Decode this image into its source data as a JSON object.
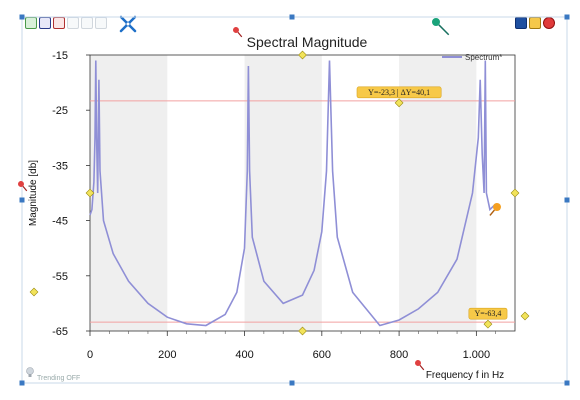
{
  "toolbar": {
    "left_buttons": [
      "save-chart",
      "zoom-fit",
      "scale-toggle",
      "linear",
      "vertical",
      "marker"
    ],
    "right_buttons": [
      "save",
      "open",
      "close"
    ],
    "accent": "#1e6fc8"
  },
  "status": {
    "trending": "Trending OFF"
  },
  "chart_data": {
    "type": "line",
    "title": "Spectral Magnitude",
    "xlabel": "Frequency f in Hz",
    "ylabel": "Magnitude [db]",
    "xlim": [
      0,
      1100
    ],
    "ylim": [
      -65,
      -15
    ],
    "x_ticks": [
      0,
      200,
      400,
      600,
      800,
      1000
    ],
    "x_tick_labels": [
      "0",
      "200",
      "400",
      "600",
      "800",
      "1.000"
    ],
    "y_ticks": [
      -15,
      -25,
      -35,
      -45,
      -55,
      -65
    ],
    "y_tick_labels": [
      "-15",
      "-25",
      "-35",
      "-45",
      "-55",
      "-65"
    ],
    "shaded_bands": [
      [
        0,
        200
      ],
      [
        400,
        600
      ],
      [
        800,
        1000
      ]
    ],
    "legend": {
      "position": "top-right"
    },
    "series": [
      {
        "name": "Spectrum*",
        "color": "#8f8fd6",
        "peaks": [
          {
            "f": 15,
            "db": -16
          },
          {
            "f": 23,
            "db": -19.5
          },
          {
            "f": 410,
            "db": -17
          },
          {
            "f": 620,
            "db": -16
          },
          {
            "f": 1010,
            "db": -19.5
          },
          {
            "f": 1023,
            "db": -16
          }
        ],
        "x": [
          0,
          5,
          10,
          13,
          15,
          17,
          20,
          23,
          26,
          35,
          60,
          100,
          150,
          200,
          250,
          300,
          350,
          380,
          400,
          407,
          410,
          413,
          420,
          450,
          500,
          550,
          580,
          600,
          612,
          620,
          628,
          640,
          680,
          750,
          800,
          850,
          900,
          950,
          990,
          1005,
          1010,
          1015,
          1020,
          1023,
          1026,
          1035,
          1050
        ],
        "y": [
          -44,
          -43,
          -38,
          -30,
          -16,
          -30,
          -40,
          -19.5,
          -36,
          -45,
          -51,
          -56,
          -60,
          -62.5,
          -63.7,
          -64,
          -62,
          -58,
          -50,
          -36,
          -17,
          -36,
          -48,
          -56,
          -60,
          -58.5,
          -54,
          -47,
          -36,
          -16,
          -36,
          -48,
          -58,
          -64,
          -63,
          -61,
          -58,
          -52,
          -40,
          -30,
          -19.5,
          -33,
          -40,
          -16,
          -40,
          -43,
          -42
        ]
      }
    ],
    "horizontal_lines": [
      {
        "y": -23.3,
        "color": "#f2a0a0"
      },
      {
        "y": -63.4,
        "color": "#f2a0a0"
      }
    ],
    "annotations": [
      {
        "text": "Y=-23,3 | ΔY=40,1",
        "x": 800,
        "y": -23.3,
        "color": "#f7c948"
      },
      {
        "text": "Y=-63,4",
        "x": 1030,
        "y": -63.4,
        "color": "#f7c948"
      }
    ],
    "grid": false
  }
}
